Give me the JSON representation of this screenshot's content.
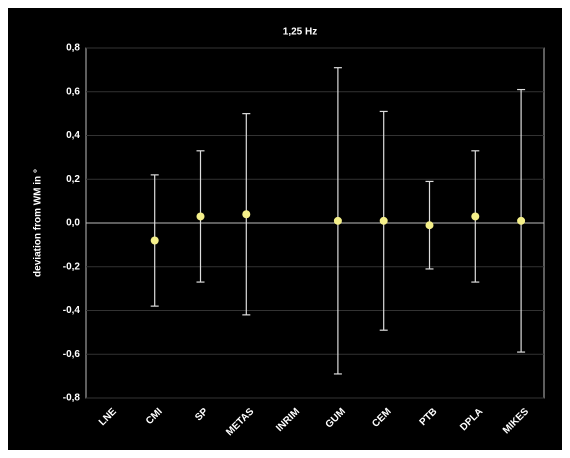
{
  "chart_data": {
    "type": "errorbar",
    "title": "1,25 Hz",
    "y_label": "deviation from WM in °",
    "categories": [
      "LNE",
      "CMI",
      "SP",
      "METAS",
      "INRIM",
      "GUM",
      "CEM",
      "PTB",
      "DPLA",
      "MIKES"
    ],
    "values": [
      null,
      -0.08,
      0.03,
      0.04,
      null,
      0.01,
      0.01,
      -0.01,
      0.03,
      0.01
    ],
    "errors": [
      null,
      0.3,
      0.3,
      0.46,
      null,
      0.7,
      0.5,
      0.2,
      0.3,
      0.6
    ],
    "color": "#f5f08a",
    "bar_color": "#dddddd",
    "ylim": [
      -0.8,
      0.8
    ],
    "yticks": [
      {
        "value": -0.8,
        "label": "-0,8"
      },
      {
        "value": -0.6,
        "label": "-0,6"
      },
      {
        "value": -0.4,
        "label": "-0,4"
      },
      {
        "value": -0.2,
        "label": "-0,2"
      },
      {
        "value": 0,
        "label": "0,0"
      },
      {
        "value": 0.2,
        "label": "0,2"
      },
      {
        "value": 0.4,
        "label": "0,4"
      },
      {
        "value": 0.6,
        "label": "0,6"
      },
      {
        "value": 0.8,
        "label": "0,8"
      }
    ],
    "grid": true
  }
}
